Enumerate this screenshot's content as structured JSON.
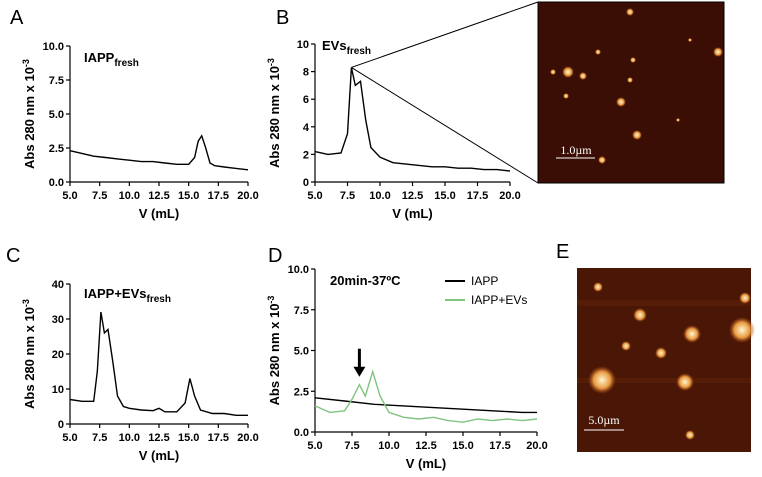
{
  "chart_data": [
    {
      "type": "line",
      "panel_label": "A",
      "annotation": "IAPP",
      "annotation_sub": "fresh",
      "xlabel": "V (mL)",
      "ylabel": "Abs 280 nm x 10",
      "ylabel_sup": "-3",
      "xlim": [
        5,
        20
      ],
      "xticks": [
        {
          "value": 5,
          "label": "5.0"
        },
        {
          "value": 7.5,
          "label": "7.5"
        },
        {
          "value": 10,
          "label": "10.0"
        },
        {
          "value": 12.5,
          "label": "12.5"
        },
        {
          "value": 15,
          "label": "15.0"
        },
        {
          "value": 17.5,
          "label": "17.5"
        },
        {
          "value": 20,
          "label": "20.0"
        }
      ],
      "ylim": [
        0,
        10
      ],
      "yticks": [
        {
          "value": 0,
          "label": "0.0"
        },
        {
          "value": 2.5,
          "label": "2.5"
        },
        {
          "value": 5,
          "label": "5.0"
        },
        {
          "value": 7.5,
          "label": "7.5"
        },
        {
          "value": 10,
          "label": "10.0"
        }
      ],
      "series": [
        {
          "name": "IAPP",
          "color": "#000000",
          "x": [
            5,
            6,
            7,
            8,
            9,
            10,
            11,
            12,
            13,
            14,
            15,
            15.5,
            15.8,
            16.1,
            16.4,
            16.8,
            17.2,
            18,
            19,
            20
          ],
          "values": [
            2.3,
            2.1,
            1.9,
            1.8,
            1.7,
            1.6,
            1.5,
            1.5,
            1.4,
            1.3,
            1.3,
            1.8,
            3.0,
            3.4,
            2.6,
            1.4,
            1.2,
            1.1,
            1.0,
            0.9
          ]
        }
      ]
    },
    {
      "type": "line",
      "panel_label": "B",
      "annotation": "EVs",
      "annotation_sub": "fresh",
      "inset_scale_bar": "1.0µm",
      "xlabel": "V (mL)",
      "ylabel": "Abs 280 nm x 10",
      "ylabel_sup": "-3",
      "xlim": [
        5,
        20
      ],
      "xticks": [
        {
          "value": 5,
          "label": "5.0"
        },
        {
          "value": 7.5,
          "label": "7.5"
        },
        {
          "value": 10,
          "label": "10.0"
        },
        {
          "value": 12.5,
          "label": "12.5"
        },
        {
          "value": 15,
          "label": "15.0"
        },
        {
          "value": 17.5,
          "label": "17.5"
        },
        {
          "value": 20,
          "label": "20.0"
        }
      ],
      "ylim": [
        0,
        10
      ],
      "yticks": [
        0,
        2,
        4,
        6,
        8,
        10
      ],
      "series": [
        {
          "name": "EVs",
          "color": "#000000",
          "x": [
            5,
            6,
            7,
            7.5,
            7.8,
            8.1,
            8.5,
            8.9,
            9.3,
            10,
            11,
            12,
            13,
            14,
            15,
            16,
            17,
            18,
            19,
            20
          ],
          "values": [
            2.2,
            2.0,
            2.1,
            3.5,
            8.3,
            7.0,
            7.3,
            4.5,
            2.5,
            1.8,
            1.4,
            1.3,
            1.2,
            1.1,
            1.1,
            1.0,
            1.0,
            0.9,
            0.9,
            0.8
          ]
        }
      ]
    },
    {
      "type": "line",
      "panel_label": "C",
      "annotation": "IAPP+EVs",
      "annotation_sub": "fresh",
      "xlabel": "V (mL)",
      "ylabel": "Abs 280 nm x 10",
      "ylabel_sup": "-3",
      "xlim": [
        5,
        20
      ],
      "xticks": [
        {
          "value": 5,
          "label": "5.0"
        },
        {
          "value": 7.5,
          "label": "7.5"
        },
        {
          "value": 10,
          "label": "10.0"
        },
        {
          "value": 12.5,
          "label": "12.5"
        },
        {
          "value": 15,
          "label": "15.0"
        },
        {
          "value": 17.5,
          "label": "17.5"
        },
        {
          "value": 20,
          "label": "20.0"
        }
      ],
      "ylim": [
        0,
        40
      ],
      "yticks": [
        0,
        10,
        20,
        30,
        40
      ],
      "series": [
        {
          "name": "IAPP+EVs",
          "color": "#000000",
          "x": [
            5,
            6,
            7,
            7.3,
            7.6,
            7.9,
            8.2,
            8.6,
            9,
            9.5,
            10,
            11,
            12,
            12.5,
            13,
            14,
            14.7,
            15.1,
            15.5,
            16,
            17,
            18,
            19,
            20
          ],
          "values": [
            7,
            6.5,
            6.5,
            15,
            32,
            26,
            27,
            18,
            8,
            5,
            4.5,
            4,
            3.8,
            4.5,
            3.5,
            3.5,
            6,
            13,
            8,
            4,
            3,
            3,
            2.5,
            2.5
          ]
        }
      ]
    },
    {
      "type": "line",
      "panel_label": "D",
      "annotation": "20min-37ºC",
      "legend": "top-right",
      "xlabel": "V (mL)",
      "ylabel": "Abs 280 nm x 10",
      "ylabel_sup": "-3",
      "xlim": [
        5,
        20
      ],
      "xticks": [
        {
          "value": 5,
          "label": "5.0"
        },
        {
          "value": 7.5,
          "label": "7.5"
        },
        {
          "value": 10,
          "label": "10.0"
        },
        {
          "value": 12.5,
          "label": "12.5"
        },
        {
          "value": 15,
          "label": "15.0"
        },
        {
          "value": 17.5,
          "label": "17.5"
        },
        {
          "value": 20,
          "label": "20.0"
        }
      ],
      "ylim": [
        0,
        10
      ],
      "yticks": [
        {
          "value": 0,
          "label": "0.0"
        },
        {
          "value": 2.5,
          "label": "2.5"
        },
        {
          "value": 5,
          "label": "5.0"
        },
        {
          "value": 7.5,
          "label": "7.5"
        },
        {
          "value": 10,
          "label": "10.0"
        }
      ],
      "series": [
        {
          "name": "IAPP",
          "color": "#000000",
          "x": [
            5,
            7,
            9,
            11,
            13,
            15,
            17,
            19,
            20
          ],
          "values": [
            2.1,
            1.9,
            1.7,
            1.6,
            1.5,
            1.4,
            1.3,
            1.2,
            1.2
          ]
        },
        {
          "name": "IAPP+EVs",
          "color": "#7fc47f",
          "x": [
            5,
            6,
            7,
            7.5,
            8,
            8.4,
            8.9,
            9.4,
            10,
            11,
            12,
            13,
            14,
            15,
            16,
            17,
            18,
            19,
            20
          ],
          "values": [
            1.6,
            1.2,
            1.3,
            2.0,
            2.9,
            2.2,
            3.7,
            2.2,
            1.2,
            0.9,
            0.8,
            0.9,
            0.7,
            0.6,
            0.8,
            0.7,
            0.8,
            0.7,
            0.8
          ]
        }
      ]
    }
  ],
  "image_panel": {
    "panel_label": "E",
    "scale_bar": "5.0µm"
  }
}
